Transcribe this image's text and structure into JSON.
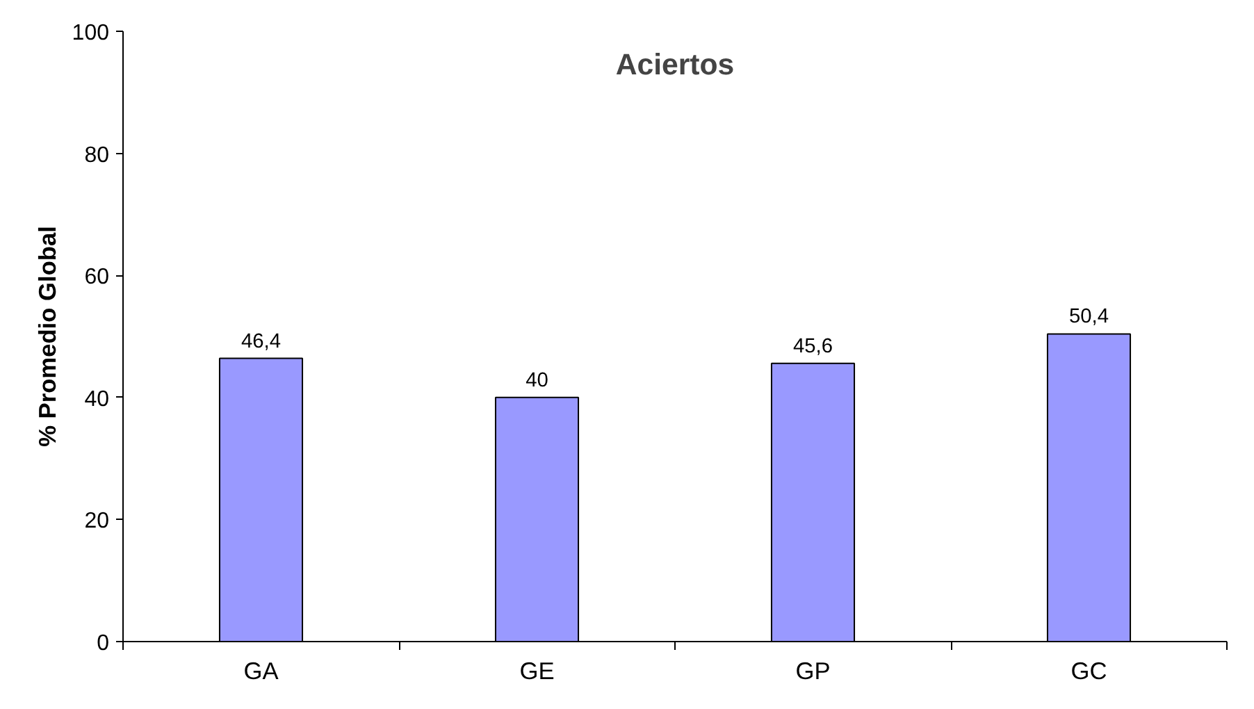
{
  "chart_data": {
    "type": "bar",
    "title": "Aciertos",
    "ylabel": "% Promedio Global",
    "categories": [
      "GA",
      "GE",
      "GP",
      "GC"
    ],
    "values": [
      46.4,
      40,
      45.6,
      50.4
    ],
    "value_labels": [
      "46,4",
      "40",
      "45,6",
      "50,4"
    ],
    "color": "#9999ff",
    "ylim": [
      0,
      100
    ],
    "yticks": [
      0,
      20,
      40,
      60,
      80,
      100
    ],
    "grid": false
  }
}
